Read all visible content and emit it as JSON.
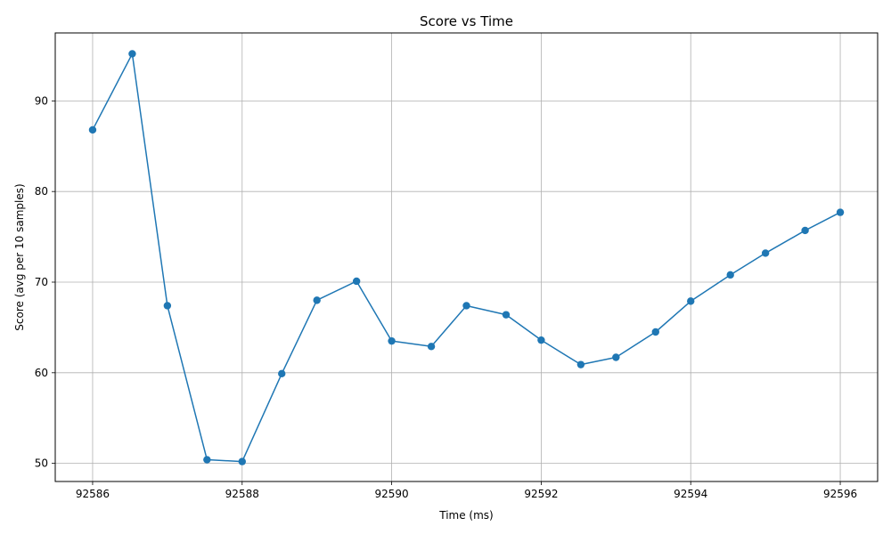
{
  "chart_data": {
    "type": "line",
    "title": "Score vs Time",
    "xlabel": "Time (ms)",
    "ylabel": "Score (avg per 10 samples)",
    "xlim": [
      92585.5,
      92596.5
    ],
    "ylim": [
      48,
      97.5
    ],
    "xticks": [
      92586,
      92588,
      92590,
      92592,
      92594,
      92596
    ],
    "yticks": [
      50,
      60,
      70,
      80,
      90
    ],
    "grid": true,
    "series": [
      {
        "color": "#1f77b4",
        "marker": "circle",
        "x": [
          92586,
          92586.53,
          92587,
          92587.53,
          92588,
          92588.53,
          92589,
          92589.53,
          92590,
          92590.53,
          92591,
          92591.53,
          92592,
          92592.53,
          92593,
          92593.53,
          92594,
          92594.53,
          92595,
          92595.53,
          92596
        ],
        "y": [
          86.8,
          95.2,
          67.4,
          50.4,
          50.2,
          59.9,
          68.0,
          70.1,
          63.5,
          62.9,
          67.4,
          66.4,
          63.6,
          60.9,
          61.7,
          64.5,
          67.9,
          70.8,
          73.2,
          75.7,
          77.7
        ]
      }
    ]
  }
}
